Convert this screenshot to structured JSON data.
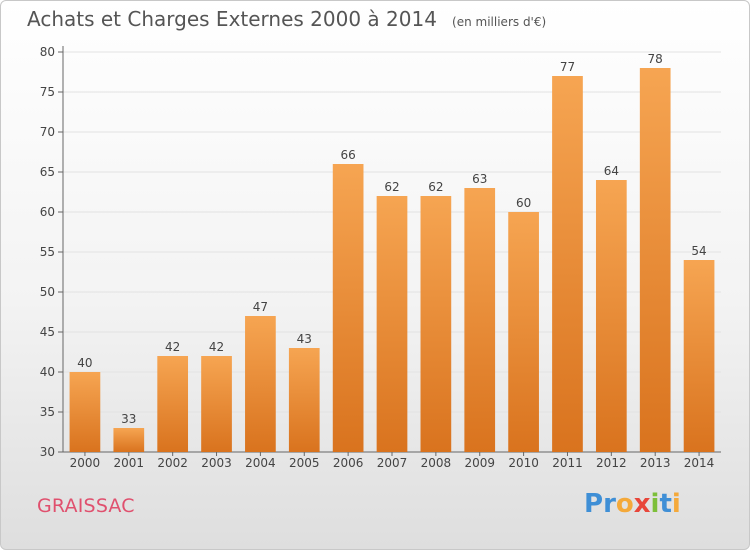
{
  "header": {
    "title": "Achats et Charges Externes 2000 à 2014",
    "subtitle": "(en milliers d'€)"
  },
  "commune": "GRAISSAC",
  "logo": {
    "letters": [
      "P",
      "r",
      "o",
      "x",
      "i",
      "t",
      "i"
    ],
    "colors": [
      "#3f8fd6",
      "#3f8fd6",
      "#f4a93a",
      "#e8463a",
      "#7dbf3a",
      "#3f8fd6",
      "#f4a93a"
    ]
  },
  "chart_data": {
    "type": "bar",
    "title": "Achats et Charges Externes 2000 à 2014",
    "subtitle": "(en milliers d'€)",
    "categories": [
      "2000",
      "2001",
      "2002",
      "2003",
      "2004",
      "2005",
      "2006",
      "2007",
      "2008",
      "2009",
      "2010",
      "2011",
      "2012",
      "2013",
      "2014"
    ],
    "values": [
      40,
      33,
      42,
      42,
      47,
      43,
      66,
      62,
      62,
      63,
      60,
      77,
      64,
      78,
      54
    ],
    "ylim": [
      30,
      80
    ],
    "yticks": [
      30,
      35,
      40,
      45,
      50,
      55,
      60,
      65,
      70,
      75,
      80
    ],
    "xlabel": "",
    "ylabel": "",
    "grid": true,
    "bar_color_top": "#f6a552",
    "bar_color_bottom": "#d9731e"
  }
}
